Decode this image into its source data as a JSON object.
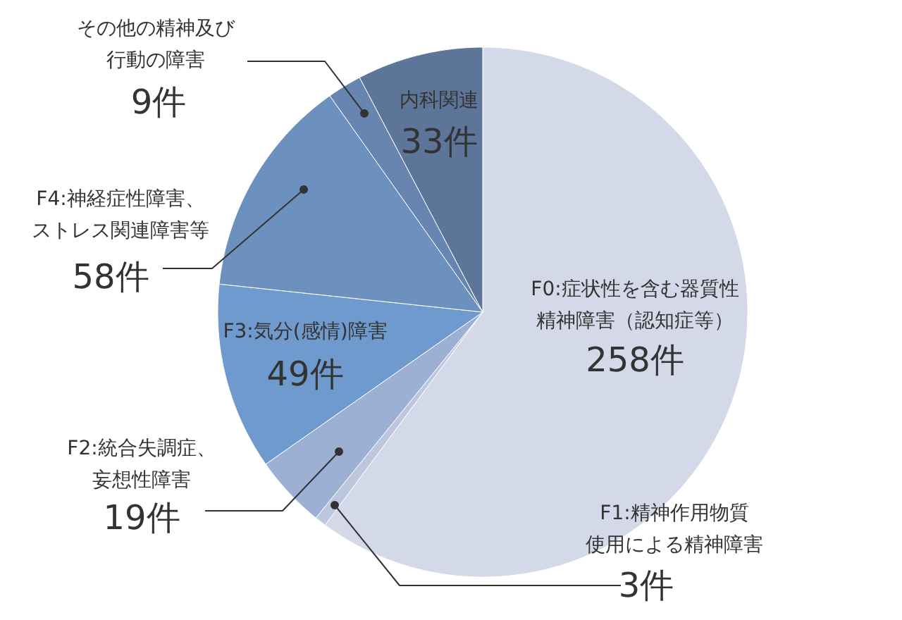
{
  "chart_data": {
    "type": "pie",
    "categories": [
      "F0:症状性を含む器質性精神障害（認知症等）",
      "F1:精神作用物質使用による精神障害",
      "F2:統合失調症、妄想性障害",
      "F3:気分(感情)障害",
      "F4:神経症性障害、ストレス関連障害等",
      "その他の精神及び行動の障害",
      "内科関連"
    ],
    "values": [
      258,
      3,
      19,
      49,
      58,
      9,
      33
    ],
    "colors": [
      "#d3d9e8",
      "#bcc7de",
      "#9cb0d4",
      "#6f9acd",
      "#6c91bf",
      "#6885b2",
      "#5c7599"
    ],
    "value_labels": [
      "258件",
      "3件",
      "19件",
      "49件",
      "58件",
      "9件",
      "33件"
    ]
  }
}
